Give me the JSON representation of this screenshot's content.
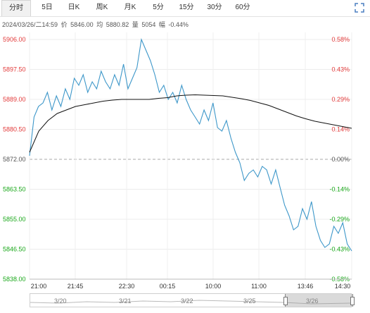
{
  "tabs": [
    {
      "label": "分时",
      "active": true
    },
    {
      "label": "5日",
      "active": false
    },
    {
      "label": "日K",
      "active": false
    },
    {
      "label": "周K",
      "active": false
    },
    {
      "label": "月K",
      "active": false
    },
    {
      "label": "5分",
      "active": false
    },
    {
      "label": "15分",
      "active": false
    },
    {
      "label": "30分",
      "active": false
    },
    {
      "label": "60分",
      "active": false
    }
  ],
  "fullscreen_icon": "fullscreen-icon",
  "info": {
    "datetime": "2024/03/26/二14:59",
    "price_label": "价",
    "price": "5846.00",
    "avg_label": "均",
    "avg": "5880.82",
    "vol_label": "量",
    "vol": "5054",
    "chg_label": "幅",
    "chg": "-0.44%"
  },
  "colors": {
    "up": "#e23b3b",
    "down": "#1aa81a",
    "price_line": "#3d97c9",
    "avg_line": "#111111",
    "base": "#999999"
  },
  "chart_data": {
    "type": "line",
    "base_price": 5872.0,
    "ylim": [
      5838.0,
      5906.0
    ],
    "y_ticks": [
      "5906.00",
      "5897.50",
      "5889.00",
      "5880.50",
      "5872.00",
      "5863.50",
      "5855.00",
      "5846.50",
      "5838.00"
    ],
    "pct_ticks": [
      "0.58%",
      "0.43%",
      "0.29%",
      "0.14%",
      "0.00%",
      "-0.14%",
      "-0.29%",
      "-0.43%",
      "-0.58%"
    ],
    "x_ticks": [
      "21:00",
      "21:45",
      "22:30",
      "00:15",
      "10:00",
      "11:00",
      "13:46",
      "14:30"
    ],
    "price_series": [
      5873,
      5884,
      5887,
      5888,
      5891,
      5886,
      5890,
      5887,
      5892,
      5889,
      5895,
      5893,
      5896,
      5891,
      5894,
      5892,
      5897,
      5894,
      5892,
      5896,
      5893,
      5899,
      5892,
      5895,
      5898,
      5906,
      5903,
      5900,
      5896,
      5891,
      5893,
      5889,
      5891,
      5888,
      5893,
      5889,
      5886,
      5884,
      5882,
      5886,
      5883,
      5888,
      5881,
      5880,
      5883,
      5878,
      5874,
      5871,
      5866,
      5868,
      5869,
      5867,
      5870,
      5869,
      5865,
      5869,
      5864,
      5859,
      5856,
      5852,
      5853,
      5858,
      5855,
      5860,
      5853,
      5849,
      5847,
      5848,
      5853,
      5851,
      5854,
      5848,
      5846
    ],
    "avg_series": [
      5874,
      5880,
      5883,
      5885,
      5886,
      5887,
      5887.5,
      5888,
      5888.5,
      5888.8,
      5889,
      5889,
      5889,
      5889,
      5889.3,
      5889.5,
      5890,
      5890.2,
      5890.3,
      5890.2,
      5890.1,
      5890,
      5889.6,
      5889.2,
      5888.7,
      5888,
      5887.3,
      5886.3,
      5885.3,
      5884.3,
      5883.5,
      5882.8,
      5882.3,
      5881.8,
      5881.3,
      5880.8
    ]
  },
  "navigator": {
    "labels": [
      "3/20",
      "3/21",
      "3/22",
      "3/25",
      "3/26"
    ]
  }
}
